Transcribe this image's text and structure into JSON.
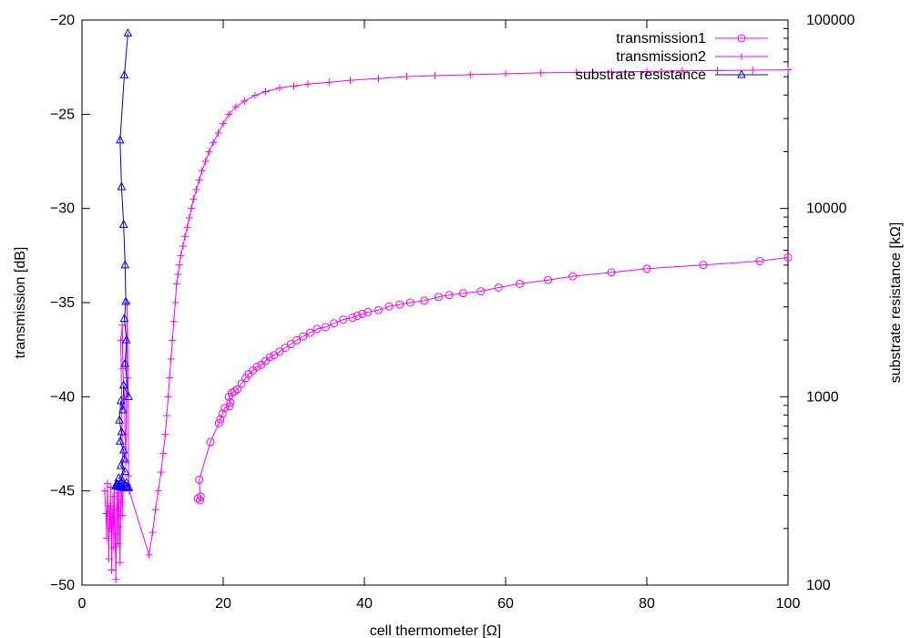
{
  "chart_data": {
    "type": "scatter",
    "title": "",
    "xlabel": "cell thermometer [Ω]",
    "ylabel": "transmission [dB]",
    "y2label": "substrate resistance [kΩ]",
    "xlim": [
      0,
      100
    ],
    "ylim": [
      -50,
      -20
    ],
    "y2lim": [
      100,
      100000
    ],
    "y2scale": "log",
    "grid": false,
    "legend_position": "top-right",
    "x_ticks": [
      "0",
      "20",
      "40",
      "60",
      "80",
      "100"
    ],
    "y_ticks": [
      "-50",
      "-45",
      "-40",
      "-35",
      "-30",
      "-25",
      "-20"
    ],
    "y2_ticks": [
      "100",
      "1000",
      "10000",
      "100000"
    ],
    "series": [
      {
        "name": "transmission1",
        "axis": "y1",
        "marker": "circle",
        "color": "#ff00ff",
        "points": [
          [
            16.4,
            -45.4
          ],
          [
            16.7,
            -45.5
          ],
          [
            16.8,
            -45.3
          ],
          [
            16.6,
            -44.4
          ],
          [
            18.2,
            -42.4
          ],
          [
            19.4,
            -41.4
          ],
          [
            19.6,
            -41.2
          ],
          [
            19.9,
            -40.9
          ],
          [
            20.2,
            -40.6
          ],
          [
            20.9,
            -40.5
          ],
          [
            21.0,
            -40.3
          ],
          [
            20.8,
            -40.0
          ],
          [
            21.2,
            -39.8
          ],
          [
            21.6,
            -39.7
          ],
          [
            22.0,
            -39.6
          ],
          [
            22.6,
            -39.3
          ],
          [
            23.2,
            -39.0
          ],
          [
            23.6,
            -38.8
          ],
          [
            24.2,
            -38.6
          ],
          [
            24.8,
            -38.4
          ],
          [
            25.4,
            -38.3
          ],
          [
            26.0,
            -38.1
          ],
          [
            26.6,
            -37.9
          ],
          [
            27.2,
            -37.8
          ],
          [
            28.0,
            -37.6
          ],
          [
            28.8,
            -37.4
          ],
          [
            29.6,
            -37.2
          ],
          [
            30.4,
            -37.0
          ],
          [
            31.3,
            -36.8
          ],
          [
            32.3,
            -36.6
          ],
          [
            33.3,
            -36.4
          ],
          [
            34.5,
            -36.3
          ],
          [
            35.7,
            -36.1
          ],
          [
            37.0,
            -35.9
          ],
          [
            38.3,
            -35.8
          ],
          [
            39.0,
            -35.7
          ],
          [
            39.7,
            -35.6
          ],
          [
            40.5,
            -35.5
          ],
          [
            42.0,
            -35.4
          ],
          [
            43.5,
            -35.2
          ],
          [
            45.0,
            -35.1
          ],
          [
            46.5,
            -35.0
          ],
          [
            48.5,
            -34.9
          ],
          [
            50.5,
            -34.7
          ],
          [
            52.0,
            -34.6
          ],
          [
            54.0,
            -34.5
          ],
          [
            56.5,
            -34.4
          ],
          [
            59.0,
            -34.2
          ],
          [
            62.0,
            -34.0
          ],
          [
            66.0,
            -33.8
          ],
          [
            69.5,
            -33.6
          ],
          [
            75.0,
            -33.4
          ],
          [
            80.0,
            -33.2
          ],
          [
            88.0,
            -33.0
          ],
          [
            96.0,
            -32.8
          ],
          [
            100.0,
            -32.6
          ]
        ]
      },
      {
        "name": "transmission2",
        "axis": "y1",
        "marker": "plus",
        "color": "#ff00ff",
        "points": [
          [
            3.2,
            -45.0
          ],
          [
            3.4,
            -46.2
          ],
          [
            3.5,
            -47.5
          ],
          [
            3.6,
            -44.6
          ],
          [
            3.8,
            -48.6
          ],
          [
            3.9,
            -45.8
          ],
          [
            4.0,
            -47.0
          ],
          [
            4.1,
            -44.8
          ],
          [
            4.2,
            -49.2
          ],
          [
            4.3,
            -46.5
          ],
          [
            4.4,
            -45.3
          ],
          [
            4.5,
            -48.0
          ],
          [
            4.6,
            -44.9
          ],
          [
            4.7,
            -47.3
          ],
          [
            4.8,
            -49.7
          ],
          [
            4.9,
            -46.0
          ],
          [
            5.0,
            -45.1
          ],
          [
            5.1,
            -47.8
          ],
          [
            5.2,
            -44.7
          ],
          [
            5.3,
            -46.9
          ],
          [
            5.4,
            -48.8
          ],
          [
            5.5,
            -45.6
          ],
          [
            5.6,
            -44.5
          ],
          [
            5.7,
            -46.3
          ],
          [
            5.8,
            -45.0
          ],
          [
            5.5,
            -37.0
          ],
          [
            5.7,
            -36.2
          ],
          [
            5.8,
            -38.5
          ],
          [
            6.0,
            -40.0
          ],
          [
            6.1,
            -42.0
          ],
          [
            6.2,
            -43.5
          ],
          [
            6.4,
            -35.0
          ],
          [
            6.5,
            -39.0
          ],
          [
            6.6,
            -44.2
          ],
          [
            6.7,
            -45.0
          ],
          [
            9.5,
            -48.4
          ],
          [
            10.0,
            -47.2
          ],
          [
            10.4,
            -46.0
          ],
          [
            10.8,
            -45.0
          ],
          [
            11.2,
            -44.0
          ],
          [
            11.5,
            -43.0
          ],
          [
            11.8,
            -42.0
          ],
          [
            12.0,
            -41.0
          ],
          [
            12.2,
            -40.0
          ],
          [
            12.4,
            -39.0
          ],
          [
            12.6,
            -38.0
          ],
          [
            12.8,
            -37.0
          ],
          [
            13.0,
            -36.0
          ],
          [
            13.2,
            -35.0
          ],
          [
            13.4,
            -34.0
          ],
          [
            13.6,
            -33.5
          ],
          [
            13.8,
            -33.0
          ],
          [
            14.0,
            -32.5
          ],
          [
            14.3,
            -32.0
          ],
          [
            14.6,
            -31.5
          ],
          [
            14.9,
            -31.0
          ],
          [
            15.2,
            -30.5
          ],
          [
            15.5,
            -30.0
          ],
          [
            15.8,
            -29.5
          ],
          [
            16.2,
            -29.0
          ],
          [
            16.6,
            -28.5
          ],
          [
            17.0,
            -28.0
          ],
          [
            17.5,
            -27.5
          ],
          [
            18.0,
            -27.0
          ],
          [
            18.6,
            -26.5
          ],
          [
            19.3,
            -26.0
          ],
          [
            20.0,
            -25.5
          ],
          [
            20.8,
            -25.0
          ],
          [
            21.8,
            -24.6
          ],
          [
            23.0,
            -24.3
          ],
          [
            24.5,
            -24.0
          ],
          [
            26.0,
            -23.8
          ],
          [
            28.0,
            -23.6
          ],
          [
            30.0,
            -23.5
          ],
          [
            32.0,
            -23.4
          ],
          [
            35.0,
            -23.3
          ],
          [
            38.0,
            -23.2
          ],
          [
            42.0,
            -23.1
          ],
          [
            46.0,
            -23.0
          ],
          [
            50.0,
            -22.95
          ],
          [
            55.0,
            -22.9
          ],
          [
            60.0,
            -22.85
          ],
          [
            65.0,
            -22.8
          ],
          [
            70.0,
            -22.78
          ],
          [
            75.0,
            -22.76
          ],
          [
            80.0,
            -22.73
          ],
          [
            85.0,
            -22.7
          ],
          [
            90.0,
            -22.68
          ],
          [
            95.0,
            -22.66
          ],
          [
            100.0,
            -22.64
          ]
        ]
      },
      {
        "name": "substrate resistance",
        "axis": "y2",
        "marker": "triangle",
        "color": "#0000ff",
        "points": [
          [
            6.5,
            85000
          ],
          [
            6.0,
            51000
          ],
          [
            5.4,
            23000
          ],
          [
            5.6,
            13000
          ],
          [
            5.9,
            8200
          ],
          [
            6.1,
            5000
          ],
          [
            6.2,
            3200
          ],
          [
            6.0,
            2600
          ],
          [
            6.3,
            2000
          ],
          [
            6.1,
            1500
          ],
          [
            6.6,
            1000
          ],
          [
            5.9,
            1150
          ],
          [
            5.8,
            850
          ],
          [
            5.5,
            950
          ],
          [
            5.3,
            750
          ],
          [
            5.6,
            650
          ],
          [
            5.4,
            580
          ],
          [
            5.9,
            520
          ],
          [
            6.0,
            470
          ],
          [
            5.5,
            430
          ],
          [
            6.1,
            400
          ],
          [
            5.2,
            370
          ],
          [
            5.7,
            360
          ],
          [
            6.3,
            350
          ],
          [
            4.9,
            345
          ],
          [
            5.0,
            340
          ],
          [
            5.3,
            338
          ],
          [
            5.8,
            336
          ],
          [
            6.2,
            334
          ],
          [
            6.4,
            332
          ],
          [
            6.6,
            330
          ],
          [
            4.8,
            335
          ],
          [
            5.1,
            333
          ],
          [
            5.5,
            331
          ],
          [
            6.0,
            329
          ]
        ]
      }
    ]
  }
}
